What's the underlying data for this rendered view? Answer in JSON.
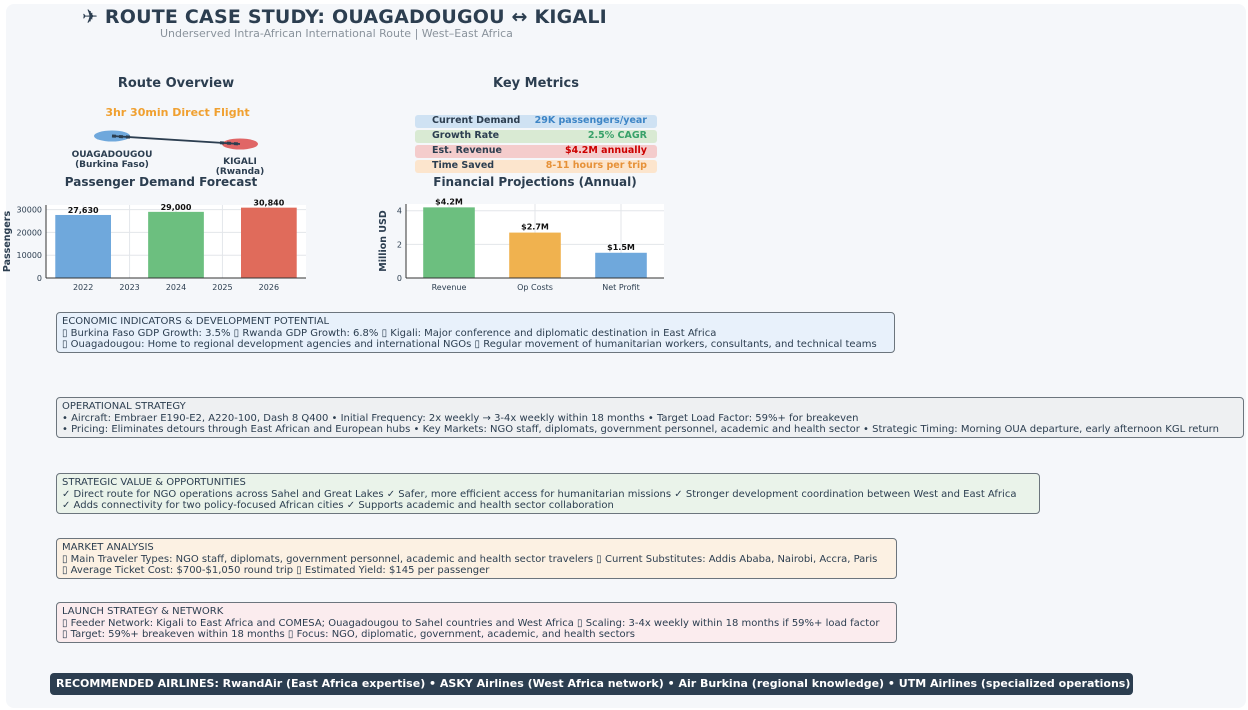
{
  "header": {
    "title": "✈ ROUTE CASE STUDY: OUAGADOUGOU ↔ KIGALI",
    "subtitle": "Underserved Intra-African International Route | West–East Africa"
  },
  "route_overview": {
    "title": "Route Overview",
    "flight_time": "3hr 30min Direct Flight",
    "origin_line1": "OUAGADOUGOU",
    "origin_line2": "(Burkina Faso)",
    "dest_line1": "KIGALI",
    "dest_line2": "(Rwanda)",
    "origin_color": "#6fa8dc",
    "dest_color": "#e06666"
  },
  "key_metrics": {
    "title": "Key Metrics",
    "items": [
      {
        "label": "Current Demand",
        "value": "29K passengers/year",
        "bg": "#cfe2f3",
        "color": "#3d85c6"
      },
      {
        "label": "Growth Rate",
        "value": "2.5% CAGR",
        "bg": "#d9ead3",
        "color": "#38a169"
      },
      {
        "label": "Est. Revenue",
        "value": "$4.2M annually",
        "bg": "#f4cccc",
        "color": "#cc0000"
      },
      {
        "label": "Time Saved",
        "value": "8-11 hours per trip",
        "bg": "#fce5cd",
        "color": "#e69138"
      }
    ]
  },
  "sections": {
    "economic": {
      "title": "ECONOMIC INDICATORS & DEVELOPMENT POTENTIAL",
      "line1": "▯ Burkina Faso GDP Growth: 3.5%  ▯ Rwanda GDP Growth: 6.8%  ▯ Kigali: Major conference and diplomatic destination in East Africa",
      "line2": "▯ Ouagadougou: Home to regional development agencies and international NGOs  ▯ Regular movement of humanitarian workers, consultants, and technical teams",
      "bg": "#e8f1fb"
    },
    "operational": {
      "title": "OPERATIONAL STRATEGY",
      "line1": "• Aircraft: Embraer E190-E2, A220-100, Dash 8 Q400  • Initial Frequency: 2x weekly → 3-4x weekly within 18 months  • Target Load Factor: 59%+ for breakeven",
      "line2": "• Pricing: Eliminates detours through East African and European hubs  • Key Markets: NGO staff, diplomats, government personnel, academic and health sector  • Strategic Timing: Morning OUA departure, early afternoon KGL return",
      "bg": "#eef0f2"
    },
    "strategic": {
      "title": "STRATEGIC VALUE & OPPORTUNITIES",
      "line1": "✓ Direct route for NGO operations across Sahel and Great Lakes  ✓ Safer, more efficient access for humanitarian missions  ✓ Stronger development coordination between West and East Africa",
      "line2": "✓ Adds connectivity for two policy-focused African cities  ✓ Supports academic and health sector collaboration",
      "bg": "#eaf3ea"
    },
    "market": {
      "title": "MARKET ANALYSIS",
      "line1": "▯ Main Traveler Types: NGO staff, diplomats, government personnel, academic and health sector travelers  ▯ Current Substitutes: Addis Ababa, Nairobi, Accra, Paris",
      "line2": "▯ Average Ticket Cost: $700-$1,050 round trip  ▯ Estimated Yield: $145 per passenger",
      "bg": "#fcf1e3"
    },
    "launch": {
      "title": "LAUNCH STRATEGY & NETWORK",
      "line1": "▯ Feeder Network: Kigali to East Africa and COMESA; Ouagadougou to Sahel countries and West Africa  ▯ Scaling: 3-4x weekly within 18 months if 59%+ load factor",
      "line2": "▯ Target: 59%+ breakeven within 18 months  ▯ Focus: NGO, diplomatic, government, academic, and health sectors",
      "bg": "#fbecee"
    }
  },
  "airlines_bar": "RECOMMENDED AIRLINES: RwandAir (East Africa expertise) • ASKY Airlines (West Africa network) • Air Burkina (regional knowledge) • UTM Airlines (specialized operations)",
  "chart_data": [
    {
      "type": "bar",
      "title": "Passenger Demand Forecast",
      "ylabel": "Passengers",
      "xlabel": "",
      "x_ticks": [
        "2022",
        "2023",
        "2024",
        "2025",
        "2026"
      ],
      "x": [
        2022,
        2024,
        2026
      ],
      "values": [
        27630,
        29000,
        30840
      ],
      "data_labels": [
        "27,630",
        "29,000",
        "30,840"
      ],
      "colors": [
        "#6fa8dc",
        "#6cbf7f",
        "#e06b5b"
      ],
      "y_ticks": [
        0,
        10000,
        20000,
        30000
      ],
      "ylim": [
        0,
        32000
      ],
      "xlim": [
        2021.2,
        2026.8
      ],
      "grid": true
    },
    {
      "type": "bar",
      "title": "Financial Projections (Annual)",
      "ylabel": "Million USD",
      "xlabel": "",
      "categories": [
        "Revenue",
        "Op Costs",
        "Net Profit"
      ],
      "values": [
        4.2,
        2.7,
        1.5
      ],
      "data_labels": [
        "$4.2M",
        "$2.7M",
        "$1.5M"
      ],
      "colors": [
        "#6cbf7f",
        "#f0b24f",
        "#6fa8dc"
      ],
      "y_ticks": [
        0,
        2,
        4
      ],
      "ylim": [
        0,
        4.4
      ],
      "grid": true
    }
  ]
}
